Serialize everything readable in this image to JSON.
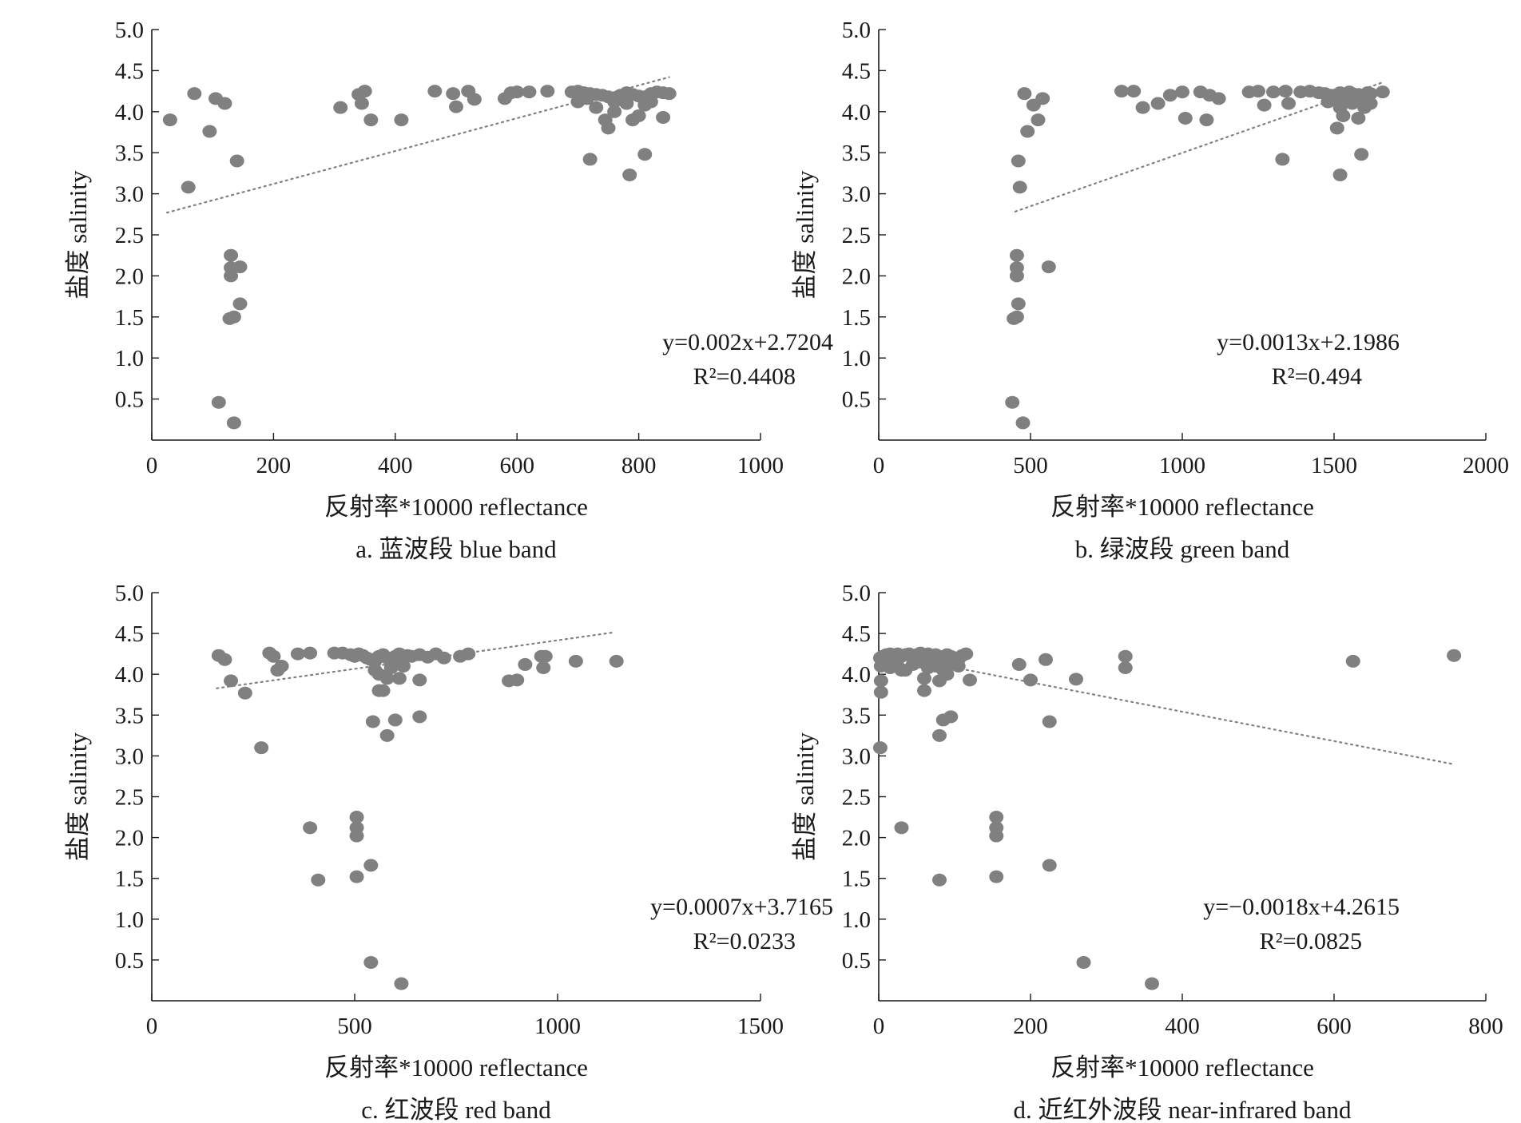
{
  "colors": {
    "point": "#808080",
    "trend": "#808080",
    "axis": "#1a1a1a"
  },
  "chart_data": [
    {
      "type": "scatter",
      "caption": "a. 蓝波段 blue band",
      "xlabel": "反射率*10000 reflectance",
      "ylabel": "盐度 salinity",
      "xlim": [
        0,
        1000
      ],
      "ylim": [
        0,
        5.0
      ],
      "xticks": [
        "0",
        "200",
        "400",
        "600",
        "800",
        "1000"
      ],
      "yticks": [
        "0.5",
        "1.0",
        "1.5",
        "2.0",
        "2.5",
        "3.0",
        "3.5",
        "4.0",
        "4.5",
        "5.0"
      ],
      "equation": "y=0.002x+2.7204",
      "r2": "R²=0.4408",
      "trend": {
        "slope": 0.002,
        "intercept": 2.7204,
        "x_range": [
          25,
          850
        ]
      },
      "points": [
        [
          30,
          3.9
        ],
        [
          60,
          3.08
        ],
        [
          70,
          4.22
        ],
        [
          95,
          3.76
        ],
        [
          105,
          4.16
        ],
        [
          120,
          4.1
        ],
        [
          140,
          3.4
        ],
        [
          110,
          0.46
        ],
        [
          135,
          0.21
        ],
        [
          130,
          2.25
        ],
        [
          130,
          2.1
        ],
        [
          130,
          2.0
        ],
        [
          145,
          2.11
        ],
        [
          145,
          1.66
        ],
        [
          128,
          1.48
        ],
        [
          135,
          1.5
        ],
        [
          310,
          4.05
        ],
        [
          340,
          4.21
        ],
        [
          350,
          4.25
        ],
        [
          345,
          4.1
        ],
        [
          360,
          3.9
        ],
        [
          410,
          3.9
        ],
        [
          465,
          4.25
        ],
        [
          495,
          4.22
        ],
        [
          500,
          4.06
        ],
        [
          520,
          4.25
        ],
        [
          530,
          4.15
        ],
        [
          580,
          4.16
        ],
        [
          590,
          4.23
        ],
        [
          600,
          4.24
        ],
        [
          620,
          4.24
        ],
        [
          650,
          4.25
        ],
        [
          690,
          4.24
        ],
        [
          700,
          4.25
        ],
        [
          710,
          4.23
        ],
        [
          720,
          4.22
        ],
        [
          730,
          4.21
        ],
        [
          740,
          4.2
        ],
        [
          750,
          4.18
        ],
        [
          760,
          4.17
        ],
        [
          770,
          4.2
        ],
        [
          780,
          4.23
        ],
        [
          790,
          4.21
        ],
        [
          800,
          4.19
        ],
        [
          810,
          4.18
        ],
        [
          820,
          4.22
        ],
        [
          830,
          4.24
        ],
        [
          840,
          4.23
        ],
        [
          850,
          4.22
        ],
        [
          730,
          4.05
        ],
        [
          745,
          3.9
        ],
        [
          750,
          3.8
        ],
        [
          760,
          4.0
        ],
        [
          790,
          3.9
        ],
        [
          800,
          3.95
        ],
        [
          780,
          4.1
        ],
        [
          810,
          4.08
        ],
        [
          840,
          3.93
        ],
        [
          720,
          3.42
        ],
        [
          810,
          3.48
        ],
        [
          785,
          3.23
        ],
        [
          700,
          4.12
        ],
        [
          715,
          4.16
        ],
        [
          760,
          4.12
        ],
        [
          775,
          4.14
        ],
        [
          820,
          4.12
        ]
      ]
    },
    {
      "type": "scatter",
      "caption": "b. 绿波段 green band",
      "xlabel": "反射率*10000 reflectance",
      "ylabel": "盐度 salinity",
      "xlim": [
        0,
        2000
      ],
      "ylim": [
        0,
        5.0
      ],
      "xticks": [
        "0",
        "500",
        "1000",
        "1500",
        "2000"
      ],
      "yticks": [
        "0.5",
        "1.0",
        "1.5",
        "2.0",
        "2.5",
        "3.0",
        "3.5",
        "4.0",
        "4.5",
        "5.0"
      ],
      "equation": "y=0.0013x+2.1986",
      "r2": "R²=0.494",
      "trend": {
        "slope": 0.0013,
        "intercept": 2.1986,
        "x_range": [
          450,
          1660
        ]
      },
      "points": [
        [
          440,
          0.46
        ],
        [
          475,
          0.21
        ],
        [
          455,
          2.25
        ],
        [
          455,
          2.1
        ],
        [
          455,
          2.0
        ],
        [
          560,
          2.11
        ],
        [
          460,
          1.66
        ],
        [
          445,
          1.48
        ],
        [
          455,
          1.5
        ],
        [
          460,
          3.4
        ],
        [
          465,
          3.08
        ],
        [
          480,
          4.22
        ],
        [
          490,
          3.76
        ],
        [
          510,
          4.08
        ],
        [
          525,
          3.9
        ],
        [
          540,
          4.16
        ],
        [
          800,
          4.25
        ],
        [
          840,
          4.25
        ],
        [
          870,
          4.05
        ],
        [
          920,
          4.1
        ],
        [
          960,
          4.2
        ],
        [
          1000,
          4.24
        ],
        [
          1010,
          3.92
        ],
        [
          1060,
          4.24
        ],
        [
          1080,
          3.9
        ],
        [
          1090,
          4.2
        ],
        [
          1120,
          4.16
        ],
        [
          1220,
          4.24
        ],
        [
          1250,
          4.25
        ],
        [
          1270,
          4.08
        ],
        [
          1300,
          4.24
        ],
        [
          1340,
          4.25
        ],
        [
          1350,
          4.1
        ],
        [
          1390,
          4.24
        ],
        [
          1420,
          4.25
        ],
        [
          1450,
          4.23
        ],
        [
          1470,
          4.22
        ],
        [
          1490,
          4.2
        ],
        [
          1500,
          4.18
        ],
        [
          1510,
          4.21
        ],
        [
          1520,
          4.23
        ],
        [
          1530,
          4.19
        ],
        [
          1540,
          4.2
        ],
        [
          1550,
          4.24
        ],
        [
          1560,
          4.22
        ],
        [
          1570,
          4.18
        ],
        [
          1580,
          4.21
        ],
        [
          1590,
          4.2
        ],
        [
          1600,
          4.15
        ],
        [
          1610,
          4.23
        ],
        [
          1620,
          4.22
        ],
        [
          1660,
          4.24
        ],
        [
          1520,
          4.05
        ],
        [
          1530,
          3.95
        ],
        [
          1560,
          4.1
        ],
        [
          1580,
          3.92
        ],
        [
          1600,
          4.05
        ],
        [
          1620,
          4.1
        ],
        [
          1510,
          3.8
        ],
        [
          1330,
          3.42
        ],
        [
          1590,
          3.48
        ],
        [
          1520,
          3.23
        ],
        [
          1480,
          4.12
        ],
        [
          1540,
          4.13
        ],
        [
          1570,
          4.15
        ],
        [
          1590,
          4.12
        ]
      ]
    },
    {
      "type": "scatter",
      "caption": "c. 红波段 red band",
      "xlabel": "反射率*10000 reflectance",
      "ylabel": "盐度 salinity",
      "xlim": [
        0,
        1500
      ],
      "ylim": [
        0,
        5.0
      ],
      "xticks": [
        "0",
        "500",
        "1000",
        "1500"
      ],
      "yticks": [
        "0.5",
        "1.0",
        "1.5",
        "2.0",
        "2.5",
        "3.0",
        "3.5",
        "4.0",
        "4.5",
        "5.0"
      ],
      "equation": "y=0.0007x+3.7165",
      "r2": "R²=0.0233",
      "trend": {
        "slope": 0.0007,
        "intercept": 3.7165,
        "x_range": [
          160,
          1140
        ]
      },
      "points": [
        [
          165,
          4.23
        ],
        [
          180,
          4.18
        ],
        [
          195,
          3.92
        ],
        [
          230,
          3.77
        ],
        [
          270,
          3.1
        ],
        [
          290,
          4.26
        ],
        [
          300,
          4.22
        ],
        [
          310,
          4.05
        ],
        [
          320,
          4.1
        ],
        [
          360,
          4.25
        ],
        [
          390,
          4.26
        ],
        [
          390,
          2.12
        ],
        [
          410,
          1.48
        ],
        [
          450,
          4.26
        ],
        [
          470,
          4.26
        ],
        [
          490,
          4.24
        ],
        [
          500,
          4.22
        ],
        [
          510,
          4.25
        ],
        [
          520,
          4.23
        ],
        [
          530,
          4.2
        ],
        [
          540,
          4.18
        ],
        [
          550,
          4.16
        ],
        [
          560,
          4.22
        ],
        [
          570,
          4.24
        ],
        [
          580,
          4.2
        ],
        [
          590,
          4.18
        ],
        [
          600,
          4.22
        ],
        [
          610,
          4.25
        ],
        [
          620,
          4.2
        ],
        [
          630,
          4.23
        ],
        [
          640,
          4.22
        ],
        [
          660,
          4.24
        ],
        [
          680,
          4.21
        ],
        [
          700,
          4.25
        ],
        [
          720,
          4.2
        ],
        [
          760,
          4.22
        ],
        [
          780,
          4.25
        ],
        [
          550,
          4.05
        ],
        [
          560,
          4.0
        ],
        [
          580,
          3.95
        ],
        [
          590,
          4.08
        ],
        [
          610,
          3.95
        ],
        [
          620,
          4.1
        ],
        [
          560,
          3.8
        ],
        [
          570,
          3.8
        ],
        [
          545,
          3.42
        ],
        [
          580,
          3.25
        ],
        [
          600,
          3.44
        ],
        [
          660,
          3.48
        ],
        [
          660,
          3.93
        ],
        [
          505,
          2.25
        ],
        [
          505,
          2.12
        ],
        [
          505,
          2.02
        ],
        [
          505,
          1.52
        ],
        [
          540,
          1.66
        ],
        [
          540,
          0.47
        ],
        [
          615,
          0.21
        ],
        [
          880,
          3.92
        ],
        [
          900,
          3.93
        ],
        [
          920,
          4.12
        ],
        [
          960,
          4.22
        ],
        [
          965,
          4.08
        ],
        [
          1045,
          4.16
        ],
        [
          1145,
          4.16
        ],
        [
          970,
          4.22
        ]
      ]
    },
    {
      "type": "scatter",
      "caption": "d. 近红外波段 near-infrared band",
      "xlabel": "反射率*10000 reflectance",
      "ylabel": "盐度 salinity",
      "xlim": [
        0,
        800
      ],
      "ylim": [
        0,
        5.0
      ],
      "xticks": [
        "0",
        "200",
        "400",
        "600",
        "800"
      ],
      "yticks": [
        "0.5",
        "1.0",
        "1.5",
        "2.0",
        "2.5",
        "3.0",
        "3.5",
        "4.0",
        "4.5",
        "5.0"
      ],
      "equation": "y=−0.0018x+4.2615",
      "r2": "R²=0.0825",
      "trend": {
        "slope": -0.0018,
        "intercept": 4.2615,
        "x_range": [
          0,
          755
        ]
      },
      "points": [
        [
          2,
          4.2
        ],
        [
          5,
          4.22
        ],
        [
          10,
          4.24
        ],
        [
          15,
          4.25
        ],
        [
          20,
          4.23
        ],
        [
          25,
          4.25
        ],
        [
          30,
          4.22
        ],
        [
          35,
          4.24
        ],
        [
          40,
          4.25
        ],
        [
          45,
          4.23
        ],
        [
          50,
          4.24
        ],
        [
          55,
          4.26
        ],
        [
          60,
          4.22
        ],
        [
          65,
          4.25
        ],
        [
          70,
          4.23
        ],
        [
          75,
          4.24
        ],
        [
          80,
          4.22
        ],
        [
          85,
          4.2
        ],
        [
          90,
          4.24
        ],
        [
          95,
          4.22
        ],
        [
          100,
          4.2
        ],
        [
          105,
          4.18
        ],
        [
          110,
          4.23
        ],
        [
          115,
          4.25
        ],
        [
          3,
          4.1
        ],
        [
          8,
          4.12
        ],
        [
          15,
          4.08
        ],
        [
          25,
          4.1
        ],
        [
          35,
          4.05
        ],
        [
          45,
          4.12
        ],
        [
          55,
          4.15
        ],
        [
          65,
          4.08
        ],
        [
          75,
          4.1
        ],
        [
          85,
          4.05
        ],
        [
          95,
          4.12
        ],
        [
          105,
          4.1
        ],
        [
          3,
          3.92
        ],
        [
          3,
          3.78
        ],
        [
          2,
          3.1
        ],
        [
          30,
          4.05
        ],
        [
          60,
          3.95
        ],
        [
          80,
          3.92
        ],
        [
          90,
          4.0
        ],
        [
          60,
          3.8
        ],
        [
          120,
          3.93
        ],
        [
          80,
          3.25
        ],
        [
          85,
          3.44
        ],
        [
          95,
          3.48
        ],
        [
          30,
          2.12
        ],
        [
          80,
          1.48
        ],
        [
          155,
          2.25
        ],
        [
          155,
          2.12
        ],
        [
          155,
          2.02
        ],
        [
          155,
          1.52
        ],
        [
          185,
          4.12
        ],
        [
          200,
          3.93
        ],
        [
          220,
          4.18
        ],
        [
          225,
          3.42
        ],
        [
          225,
          1.66
        ],
        [
          260,
          3.94
        ],
        [
          270,
          0.47
        ],
        [
          325,
          4.22
        ],
        [
          325,
          4.08
        ],
        [
          360,
          0.21
        ],
        [
          625,
          4.16
        ],
        [
          758,
          4.23
        ]
      ]
    }
  ]
}
